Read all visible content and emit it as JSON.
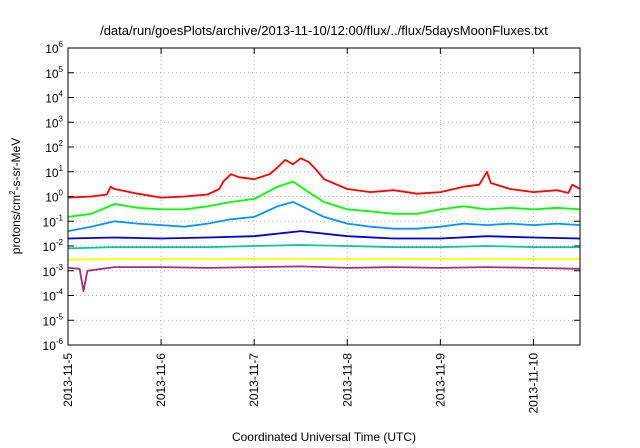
{
  "chart_data": {
    "type": "line",
    "title": "/data/run/goesPlots/archive/2013-11-10/12:00/flux/../flux/5daysMoonFluxes.txt",
    "xlabel": "Coordinated Universal Time (UTC)",
    "ylabel_parts": [
      "protons/cm",
      "2",
      "-s-sr-MeV"
    ],
    "y_scale": "log",
    "ylim": [
      1e-06,
      1000000.0
    ],
    "y_tick_labels": [
      {
        "base": "10",
        "exp": "-6"
      },
      {
        "base": "10",
        "exp": "-5"
      },
      {
        "base": "10",
        "exp": "-4"
      },
      {
        "base": "10",
        "exp": "-3"
      },
      {
        "base": "10",
        "exp": "-2"
      },
      {
        "base": "10",
        "exp": "-1"
      },
      {
        "base": "10",
        "exp": "0"
      },
      {
        "base": "10",
        "exp": "1"
      },
      {
        "base": "10",
        "exp": "2"
      },
      {
        "base": "10",
        "exp": "3"
      },
      {
        "base": "10",
        "exp": "4"
      },
      {
        "base": "10",
        "exp": "5"
      },
      {
        "base": "10",
        "exp": "6"
      }
    ],
    "x_range": [
      "2013-11-05",
      "2013-11-10 12:00"
    ],
    "x_ticks": [
      "2013-11-5",
      "2013-11-6",
      "2013-11-7",
      "2013-11-8",
      "2013-11-9",
      "2013-11-10"
    ],
    "grid": true,
    "series": [
      {
        "color": "#ff0000",
        "x": [
          "2013-11-05 00:00",
          "2013-11-05 06:00",
          "2013-11-05 10:00",
          "2013-11-05 11:00",
          "2013-11-05 12:00",
          "2013-11-05 18:00",
          "2013-11-06 00:00",
          "2013-11-06 06:00",
          "2013-11-06 12:00",
          "2013-11-06 15:00",
          "2013-11-06 16:00",
          "2013-11-06 18:00",
          "2013-11-06 20:00",
          "2013-11-07 00:00",
          "2013-11-07 04:00",
          "2013-11-07 06:00",
          "2013-11-07 08:00",
          "2013-11-07 10:00",
          "2013-11-07 12:00",
          "2013-11-07 14:00",
          "2013-11-07 16:00",
          "2013-11-07 18:00",
          "2013-11-08 00:00",
          "2013-11-08 06:00",
          "2013-11-08 12:00",
          "2013-11-08 18:00",
          "2013-11-09 00:00",
          "2013-11-09 06:00",
          "2013-11-09 10:00",
          "2013-11-09 12:00",
          "2013-11-09 13:00",
          "2013-11-09 18:00",
          "2013-11-10 00:00",
          "2013-11-10 06:00",
          "2013-11-10 09:00",
          "2013-11-10 10:00",
          "2013-11-10 12:00"
        ],
        "y": [
          0.9,
          1.0,
          1.2,
          2.5,
          2.0,
          1.3,
          0.9,
          1.0,
          1.2,
          2.0,
          4.0,
          8.0,
          6.0,
          5.0,
          8.0,
          15.0,
          30.0,
          20.0,
          35.0,
          25.0,
          12.0,
          5.0,
          2.0,
          1.5,
          1.8,
          1.3,
          1.5,
          2.5,
          3.0,
          10.0,
          3.5,
          2.0,
          1.5,
          1.8,
          1.4,
          3.0,
          2.0
        ]
      },
      {
        "color": "#00ff00",
        "x": [
          "2013-11-05 00:00",
          "2013-11-05 06:00",
          "2013-11-05 12:00",
          "2013-11-05 18:00",
          "2013-11-06 00:00",
          "2013-11-06 06:00",
          "2013-11-06 12:00",
          "2013-11-06 18:00",
          "2013-11-07 00:00",
          "2013-11-07 06:00",
          "2013-11-07 10:00",
          "2013-11-07 14:00",
          "2013-11-07 18:00",
          "2013-11-08 00:00",
          "2013-11-08 06:00",
          "2013-11-08 12:00",
          "2013-11-08 18:00",
          "2013-11-09 00:00",
          "2013-11-09 06:00",
          "2013-11-09 12:00",
          "2013-11-09 18:00",
          "2013-11-10 00:00",
          "2013-11-10 06:00",
          "2013-11-10 12:00"
        ],
        "y": [
          0.15,
          0.2,
          0.5,
          0.35,
          0.3,
          0.3,
          0.4,
          0.6,
          0.8,
          2.5,
          4.0,
          1.5,
          0.6,
          0.3,
          0.25,
          0.2,
          0.2,
          0.3,
          0.4,
          0.3,
          0.35,
          0.3,
          0.35,
          0.3
        ]
      },
      {
        "color": "#0096ff",
        "x": [
          "2013-11-05 00:00",
          "2013-11-05 06:00",
          "2013-11-05 12:00",
          "2013-11-05 18:00",
          "2013-11-06 00:00",
          "2013-11-06 06:00",
          "2013-11-06 12:00",
          "2013-11-06 18:00",
          "2013-11-07 00:00",
          "2013-11-07 06:00",
          "2013-11-07 10:00",
          "2013-11-07 14:00",
          "2013-11-07 18:00",
          "2013-11-08 00:00",
          "2013-11-08 06:00",
          "2013-11-08 12:00",
          "2013-11-08 18:00",
          "2013-11-09 00:00",
          "2013-11-09 06:00",
          "2013-11-09 12:00",
          "2013-11-09 18:00",
          "2013-11-10 00:00",
          "2013-11-10 06:00",
          "2013-11-10 12:00"
        ],
        "y": [
          0.04,
          0.06,
          0.1,
          0.08,
          0.07,
          0.06,
          0.08,
          0.12,
          0.15,
          0.4,
          0.6,
          0.3,
          0.15,
          0.08,
          0.06,
          0.05,
          0.05,
          0.06,
          0.08,
          0.07,
          0.08,
          0.07,
          0.08,
          0.07
        ]
      },
      {
        "color": "#0000d0",
        "x": [
          "2013-11-05 00:00",
          "2013-11-05 12:00",
          "2013-11-06 00:00",
          "2013-11-06 12:00",
          "2013-11-07 00:00",
          "2013-11-07 12:00",
          "2013-11-08 00:00",
          "2013-11-08 12:00",
          "2013-11-09 00:00",
          "2013-11-09 12:00",
          "2013-11-10 00:00",
          "2013-11-10 12:00"
        ],
        "y": [
          0.02,
          0.022,
          0.02,
          0.022,
          0.025,
          0.04,
          0.025,
          0.02,
          0.02,
          0.025,
          0.022,
          0.02
        ]
      },
      {
        "color": "#00c8a0",
        "x": [
          "2013-11-05 00:00",
          "2013-11-05 12:00",
          "2013-11-06 00:00",
          "2013-11-06 12:00",
          "2013-11-07 00:00",
          "2013-11-07 12:00",
          "2013-11-08 00:00",
          "2013-11-08 12:00",
          "2013-11-09 00:00",
          "2013-11-09 12:00",
          "2013-11-10 00:00",
          "2013-11-10 12:00"
        ],
        "y": [
          0.008,
          0.009,
          0.009,
          0.009,
          0.01,
          0.011,
          0.01,
          0.009,
          0.009,
          0.01,
          0.009,
          0.009
        ]
      },
      {
        "color": "#ffff00",
        "x": [
          "2013-11-05 00:00",
          "2013-11-05 12:00",
          "2013-11-06 00:00",
          "2013-11-06 12:00",
          "2013-11-07 00:00",
          "2013-11-07 12:00",
          "2013-11-08 00:00",
          "2013-11-08 12:00",
          "2013-11-09 00:00",
          "2013-11-09 12:00",
          "2013-11-10 00:00",
          "2013-11-10 12:00"
        ],
        "y": [
          0.0028,
          0.003,
          0.003,
          0.003,
          0.003,
          0.003,
          0.003,
          0.003,
          0.003,
          0.003,
          0.003,
          0.003
        ]
      },
      {
        "color": "#a0307a",
        "x": [
          "2013-11-05 00:00",
          "2013-11-05 03:00",
          "2013-11-05 04:00",
          "2013-11-05 05:00",
          "2013-11-05 12:00",
          "2013-11-06 00:00",
          "2013-11-06 12:00",
          "2013-11-07 00:00",
          "2013-11-07 12:00",
          "2013-11-08 00:00",
          "2013-11-08 12:00",
          "2013-11-09 00:00",
          "2013-11-09 12:00",
          "2013-11-10 00:00",
          "2013-11-10 12:00"
        ],
        "y": [
          0.0013,
          0.0012,
          0.00015,
          0.001,
          0.0014,
          0.0014,
          0.0013,
          0.0014,
          0.0015,
          0.0013,
          0.0014,
          0.0013,
          0.0014,
          0.0013,
          0.0012
        ]
      }
    ]
  }
}
